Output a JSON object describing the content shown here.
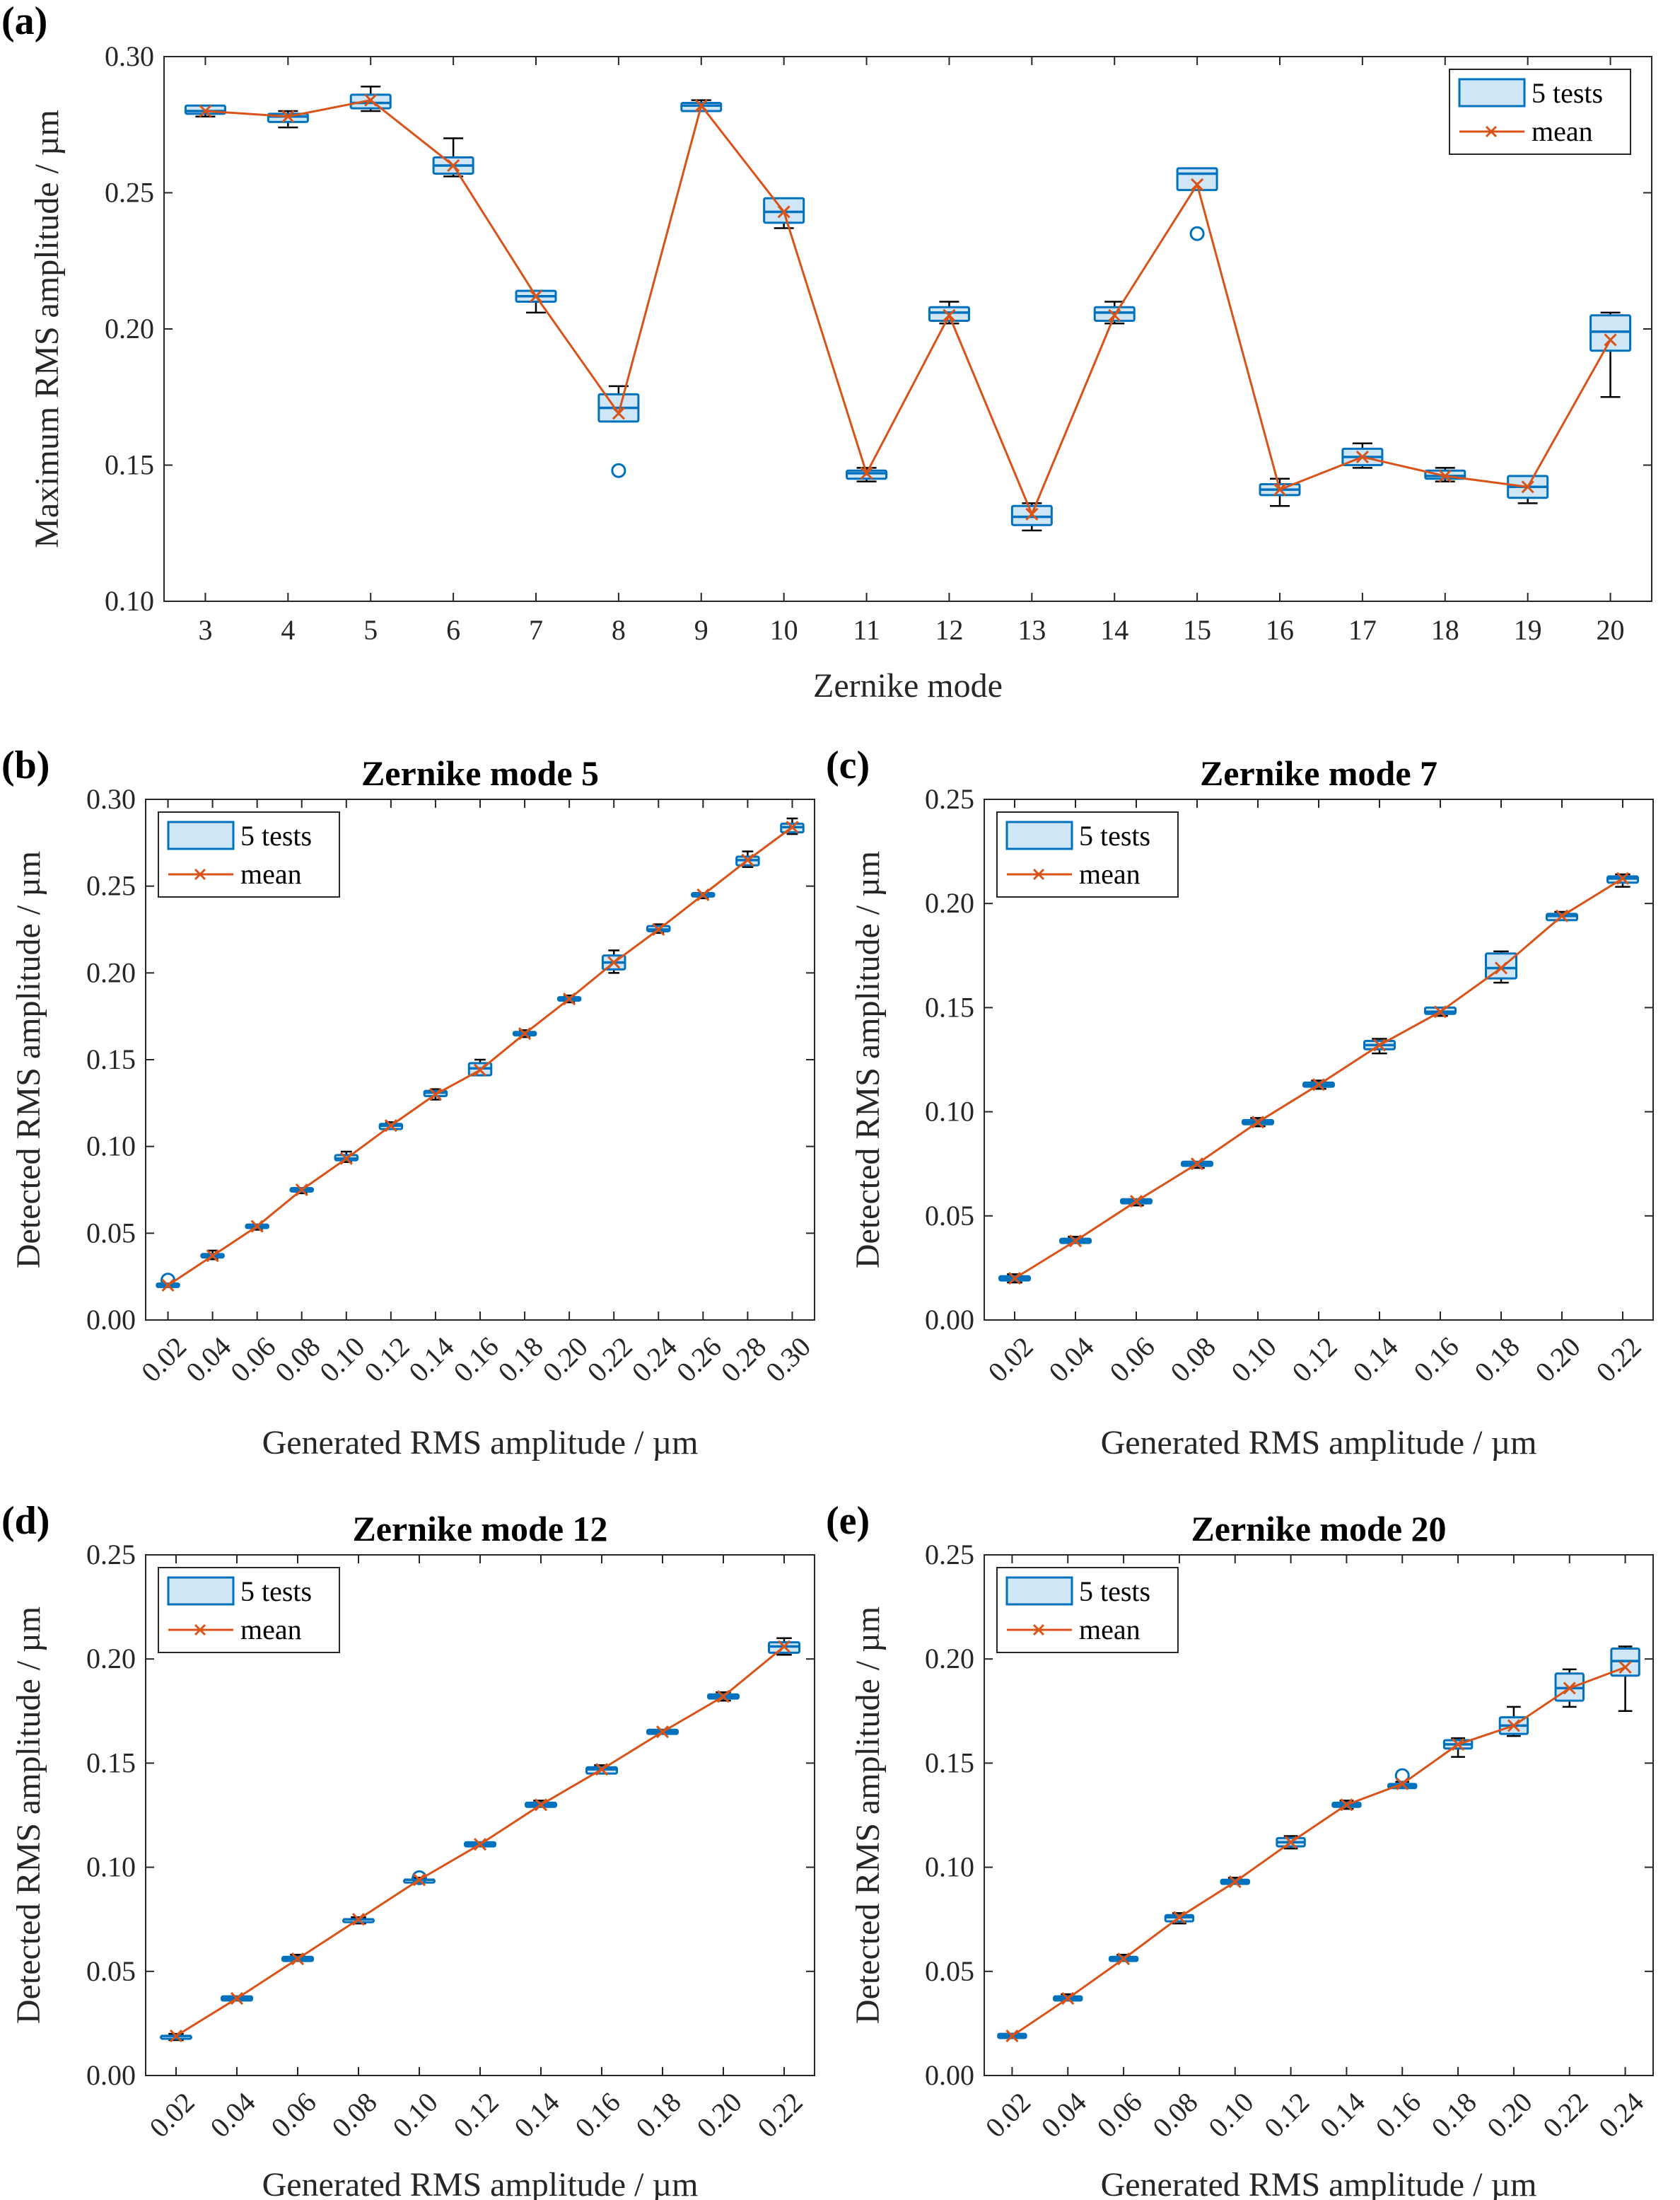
{
  "colors": {
    "box_edge": "#0072BD",
    "box_fill": "#CFE6F6",
    "mean_line": "#D95319",
    "whisker": "#000000",
    "axes": "#262626"
  },
  "chart_data": [
    {
      "panel": "(a)",
      "type": "box",
      "title": "",
      "xlabel": "Zernike mode",
      "ylabel": "Maximum RMS amplitude / µm",
      "ylim": [
        0.1,
        0.3
      ],
      "yticks": [
        "0.10",
        "0.15",
        "0.20",
        "0.25",
        "0.30"
      ],
      "ytick_values": [
        0.1,
        0.15,
        0.2,
        0.25,
        0.3
      ],
      "categories": [
        "3",
        "4",
        "5",
        "6",
        "7",
        "8",
        "9",
        "10",
        "11",
        "12",
        "13",
        "14",
        "15",
        "16",
        "17",
        "18",
        "19",
        "20"
      ],
      "rotate_xticks": false,
      "legend": {
        "box_label": "5 tests",
        "mean_label": "mean",
        "position": "top-right"
      },
      "boxes": [
        {
          "q1": 0.279,
          "median": 0.28,
          "q3": 0.282,
          "wlo": 0.278,
          "whi": 0.282,
          "mean": 0.28,
          "outliers": []
        },
        {
          "q1": 0.276,
          "median": 0.278,
          "q3": 0.279,
          "wlo": 0.274,
          "whi": 0.28,
          "mean": 0.278,
          "outliers": []
        },
        {
          "q1": 0.281,
          "median": 0.283,
          "q3": 0.286,
          "wlo": 0.28,
          "whi": 0.289,
          "mean": 0.284,
          "outliers": []
        },
        {
          "q1": 0.257,
          "median": 0.26,
          "q3": 0.263,
          "wlo": 0.256,
          "whi": 0.27,
          "mean": 0.26,
          "outliers": []
        },
        {
          "q1": 0.21,
          "median": 0.212,
          "q3": 0.214,
          "wlo": 0.206,
          "whi": 0.214,
          "mean": 0.212,
          "outliers": []
        },
        {
          "q1": 0.166,
          "median": 0.171,
          "q3": 0.176,
          "wlo": 0.166,
          "whi": 0.179,
          "mean": 0.169,
          "outliers": [
            0.148
          ]
        },
        {
          "q1": 0.28,
          "median": 0.282,
          "q3": 0.283,
          "wlo": 0.28,
          "whi": 0.284,
          "mean": 0.282,
          "outliers": []
        },
        {
          "q1": 0.239,
          "median": 0.243,
          "q3": 0.248,
          "wlo": 0.237,
          "whi": 0.248,
          "mean": 0.243,
          "outliers": []
        },
        {
          "q1": 0.145,
          "median": 0.147,
          "q3": 0.148,
          "wlo": 0.144,
          "whi": 0.149,
          "mean": 0.147,
          "outliers": []
        },
        {
          "q1": 0.203,
          "median": 0.206,
          "q3": 0.208,
          "wlo": 0.202,
          "whi": 0.21,
          "mean": 0.205,
          "outliers": []
        },
        {
          "q1": 0.128,
          "median": 0.131,
          "q3": 0.135,
          "wlo": 0.126,
          "whi": 0.136,
          "mean": 0.132,
          "outliers": []
        },
        {
          "q1": 0.203,
          "median": 0.206,
          "q3": 0.208,
          "wlo": 0.202,
          "whi": 0.21,
          "mean": 0.205,
          "outliers": []
        },
        {
          "q1": 0.251,
          "median": 0.257,
          "q3": 0.259,
          "wlo": 0.251,
          "whi": 0.259,
          "mean": 0.253,
          "outliers": [
            0.235
          ]
        },
        {
          "q1": 0.139,
          "median": 0.141,
          "q3": 0.143,
          "wlo": 0.135,
          "whi": 0.145,
          "mean": 0.141,
          "outliers": []
        },
        {
          "q1": 0.15,
          "median": 0.153,
          "q3": 0.156,
          "wlo": 0.149,
          "whi": 0.158,
          "mean": 0.153,
          "outliers": []
        },
        {
          "q1": 0.145,
          "median": 0.146,
          "q3": 0.148,
          "wlo": 0.144,
          "whi": 0.149,
          "mean": 0.146,
          "outliers": []
        },
        {
          "q1": 0.138,
          "median": 0.142,
          "q3": 0.146,
          "wlo": 0.136,
          "whi": 0.146,
          "mean": 0.142,
          "outliers": []
        },
        {
          "q1": 0.192,
          "median": 0.199,
          "q3": 0.205,
          "wlo": 0.175,
          "whi": 0.206,
          "mean": 0.196,
          "outliers": []
        }
      ]
    },
    {
      "panel": "(b)",
      "type": "box",
      "title": "Zernike mode 5",
      "xlabel": "Generated RMS amplitude / µm",
      "ylabel": "Detected RMS amplitude / µm",
      "ylim": [
        0.0,
        0.3
      ],
      "yticks": [
        "0.00",
        "0.05",
        "0.10",
        "0.15",
        "0.20",
        "0.25",
        "0.30"
      ],
      "ytick_values": [
        0.0,
        0.05,
        0.1,
        0.15,
        0.2,
        0.25,
        0.3
      ],
      "categories": [
        "0.02",
        "0.04",
        "0.06",
        "0.08",
        "0.10",
        "0.12",
        "0.14",
        "0.16",
        "0.18",
        "0.20",
        "0.22",
        "0.24",
        "0.26",
        "0.28",
        "0.30"
      ],
      "rotate_xticks": true,
      "legend": {
        "box_label": "5 tests",
        "mean_label": "mean",
        "position": "top-left"
      },
      "boxes": [
        {
          "q1": 0.019,
          "median": 0.02,
          "q3": 0.021,
          "wlo": 0.019,
          "whi": 0.021,
          "mean": 0.02,
          "outliers": [
            0.023
          ]
        },
        {
          "q1": 0.036,
          "median": 0.037,
          "q3": 0.038,
          "wlo": 0.035,
          "whi": 0.04,
          "mean": 0.037,
          "outliers": []
        },
        {
          "q1": 0.053,
          "median": 0.054,
          "q3": 0.055,
          "wlo": 0.052,
          "whi": 0.055,
          "mean": 0.054,
          "outliers": []
        },
        {
          "q1": 0.074,
          "median": 0.075,
          "q3": 0.076,
          "wlo": 0.073,
          "whi": 0.076,
          "mean": 0.075,
          "outliers": []
        },
        {
          "q1": 0.092,
          "median": 0.093,
          "q3": 0.095,
          "wlo": 0.091,
          "whi": 0.097,
          "mean": 0.093,
          "outliers": []
        },
        {
          "q1": 0.11,
          "median": 0.112,
          "q3": 0.113,
          "wlo": 0.11,
          "whi": 0.114,
          "mean": 0.112,
          "outliers": []
        },
        {
          "q1": 0.129,
          "median": 0.131,
          "q3": 0.132,
          "wlo": 0.127,
          "whi": 0.133,
          "mean": 0.13,
          "outliers": []
        },
        {
          "q1": 0.141,
          "median": 0.145,
          "q3": 0.148,
          "wlo": 0.141,
          "whi": 0.15,
          "mean": 0.144,
          "outliers": []
        },
        {
          "q1": 0.164,
          "median": 0.165,
          "q3": 0.166,
          "wlo": 0.163,
          "whi": 0.167,
          "mean": 0.165,
          "outliers": []
        },
        {
          "q1": 0.184,
          "median": 0.185,
          "q3": 0.186,
          "wlo": 0.183,
          "whi": 0.187,
          "mean": 0.185,
          "outliers": []
        },
        {
          "q1": 0.202,
          "median": 0.206,
          "q3": 0.21,
          "wlo": 0.2,
          "whi": 0.213,
          "mean": 0.206,
          "outliers": []
        },
        {
          "q1": 0.224,
          "median": 0.225,
          "q3": 0.227,
          "wlo": 0.223,
          "whi": 0.228,
          "mean": 0.225,
          "outliers": []
        },
        {
          "q1": 0.244,
          "median": 0.245,
          "q3": 0.246,
          "wlo": 0.243,
          "whi": 0.246,
          "mean": 0.245,
          "outliers": []
        },
        {
          "q1": 0.262,
          "median": 0.265,
          "q3": 0.267,
          "wlo": 0.261,
          "whi": 0.27,
          "mean": 0.265,
          "outliers": []
        },
        {
          "q1": 0.281,
          "median": 0.284,
          "q3": 0.286,
          "wlo": 0.28,
          "whi": 0.289,
          "mean": 0.284,
          "outliers": []
        }
      ]
    },
    {
      "panel": "(c)",
      "type": "box",
      "title": "Zernike mode 7",
      "xlabel": "Generated RMS amplitude / µm",
      "ylabel": "Detected RMS amplitude / µm",
      "ylim": [
        0.0,
        0.25
      ],
      "yticks": [
        "0.00",
        "0.05",
        "0.10",
        "0.15",
        "0.20",
        "0.25"
      ],
      "ytick_values": [
        0.0,
        0.05,
        0.1,
        0.15,
        0.2,
        0.25
      ],
      "categories": [
        "0.02",
        "0.04",
        "0.06",
        "0.08",
        "0.10",
        "0.12",
        "0.14",
        "0.16",
        "0.18",
        "0.20",
        "0.22"
      ],
      "rotate_xticks": true,
      "legend": {
        "box_label": "5 tests",
        "mean_label": "mean",
        "position": "top-left"
      },
      "boxes": [
        {
          "q1": 0.019,
          "median": 0.02,
          "q3": 0.021,
          "wlo": 0.018,
          "whi": 0.022,
          "mean": 0.02,
          "outliers": []
        },
        {
          "q1": 0.037,
          "median": 0.038,
          "q3": 0.039,
          "wlo": 0.037,
          "whi": 0.04,
          "mean": 0.038,
          "outliers": []
        },
        {
          "q1": 0.056,
          "median": 0.057,
          "q3": 0.058,
          "wlo": 0.055,
          "whi": 0.058,
          "mean": 0.057,
          "outliers": []
        },
        {
          "q1": 0.074,
          "median": 0.075,
          "q3": 0.076,
          "wlo": 0.073,
          "whi": 0.076,
          "mean": 0.075,
          "outliers": []
        },
        {
          "q1": 0.094,
          "median": 0.095,
          "q3": 0.096,
          "wlo": 0.093,
          "whi": 0.097,
          "mean": 0.095,
          "outliers": []
        },
        {
          "q1": 0.112,
          "median": 0.113,
          "q3": 0.114,
          "wlo": 0.111,
          "whi": 0.115,
          "mean": 0.113,
          "outliers": []
        },
        {
          "q1": 0.13,
          "median": 0.132,
          "q3": 0.134,
          "wlo": 0.128,
          "whi": 0.135,
          "mean": 0.132,
          "outliers": []
        },
        {
          "q1": 0.147,
          "median": 0.148,
          "q3": 0.15,
          "wlo": 0.146,
          "whi": 0.15,
          "mean": 0.148,
          "outliers": []
        },
        {
          "q1": 0.164,
          "median": 0.169,
          "q3": 0.176,
          "wlo": 0.162,
          "whi": 0.177,
          "mean": 0.169,
          "outliers": []
        },
        {
          "q1": 0.192,
          "median": 0.194,
          "q3": 0.195,
          "wlo": 0.192,
          "whi": 0.196,
          "mean": 0.194,
          "outliers": []
        },
        {
          "q1": 0.21,
          "median": 0.212,
          "q3": 0.213,
          "wlo": 0.208,
          "whi": 0.214,
          "mean": 0.212,
          "outliers": []
        }
      ]
    },
    {
      "panel": "(d)",
      "type": "box",
      "title": "Zernike mode 12",
      "xlabel": "Generated RMS amplitude / µm",
      "ylabel": "Detected RMS amplitude / µm",
      "ylim": [
        0.0,
        0.25
      ],
      "yticks": [
        "0.00",
        "0.05",
        "0.10",
        "0.15",
        "0.20",
        "0.25"
      ],
      "ytick_values": [
        0.0,
        0.05,
        0.1,
        0.15,
        0.2,
        0.25
      ],
      "categories": [
        "0.02",
        "0.04",
        "0.06",
        "0.08",
        "0.10",
        "0.12",
        "0.14",
        "0.16",
        "0.18",
        "0.20",
        "0.22"
      ],
      "rotate_xticks": true,
      "legend": {
        "box_label": "5 tests",
        "mean_label": "mean",
        "position": "top-left"
      },
      "boxes": [
        {
          "q1": 0.018,
          "median": 0.019,
          "q3": 0.019,
          "wlo": 0.017,
          "whi": 0.02,
          "mean": 0.019,
          "outliers": []
        },
        {
          "q1": 0.036,
          "median": 0.037,
          "q3": 0.038,
          "wlo": 0.036,
          "whi": 0.038,
          "mean": 0.037,
          "outliers": []
        },
        {
          "q1": 0.055,
          "median": 0.056,
          "q3": 0.057,
          "wlo": 0.055,
          "whi": 0.058,
          "mean": 0.056,
          "outliers": []
        },
        {
          "q1": 0.074,
          "median": 0.075,
          "q3": 0.075,
          "wlo": 0.073,
          "whi": 0.076,
          "mean": 0.075,
          "outliers": []
        },
        {
          "q1": 0.093,
          "median": 0.094,
          "q3": 0.094,
          "wlo": 0.093,
          "whi": 0.095,
          "mean": 0.094,
          "outliers": [
            0.095
          ]
        },
        {
          "q1": 0.11,
          "median": 0.111,
          "q3": 0.112,
          "wlo": 0.11,
          "whi": 0.112,
          "mean": 0.111,
          "outliers": []
        },
        {
          "q1": 0.129,
          "median": 0.13,
          "q3": 0.131,
          "wlo": 0.129,
          "whi": 0.132,
          "mean": 0.13,
          "outliers": []
        },
        {
          "q1": 0.145,
          "median": 0.147,
          "q3": 0.148,
          "wlo": 0.145,
          "whi": 0.149,
          "mean": 0.147,
          "outliers": []
        },
        {
          "q1": 0.164,
          "median": 0.165,
          "q3": 0.166,
          "wlo": 0.164,
          "whi": 0.166,
          "mean": 0.165,
          "outliers": []
        },
        {
          "q1": 0.181,
          "median": 0.182,
          "q3": 0.183,
          "wlo": 0.18,
          "whi": 0.184,
          "mean": 0.182,
          "outliers": []
        },
        {
          "q1": 0.203,
          "median": 0.206,
          "q3": 0.208,
          "wlo": 0.202,
          "whi": 0.21,
          "mean": 0.206,
          "outliers": []
        }
      ]
    },
    {
      "panel": "(e)",
      "type": "box",
      "title": "Zernike mode 20",
      "xlabel": "Generated RMS amplitude / µm",
      "ylabel": "Detected RMS amplitude / µm",
      "ylim": [
        0.0,
        0.25
      ],
      "yticks": [
        "0.00",
        "0.05",
        "0.10",
        "0.15",
        "0.20",
        "0.25"
      ],
      "ytick_values": [
        0.0,
        0.05,
        0.1,
        0.15,
        0.2,
        0.25
      ],
      "categories": [
        "0.02",
        "0.04",
        "0.06",
        "0.08",
        "0.10",
        "0.12",
        "0.14",
        "0.16",
        "0.18",
        "0.20",
        "0.22",
        "0.24"
      ],
      "rotate_xticks": true,
      "legend": {
        "box_label": "5 tests",
        "mean_label": "mean",
        "position": "top-left"
      },
      "boxes": [
        {
          "q1": 0.018,
          "median": 0.019,
          "q3": 0.02,
          "wlo": 0.018,
          "whi": 0.02,
          "mean": 0.019,
          "outliers": []
        },
        {
          "q1": 0.036,
          "median": 0.037,
          "q3": 0.038,
          "wlo": 0.036,
          "whi": 0.039,
          "mean": 0.037,
          "outliers": []
        },
        {
          "q1": 0.055,
          "median": 0.056,
          "q3": 0.057,
          "wlo": 0.055,
          "whi": 0.058,
          "mean": 0.056,
          "outliers": []
        },
        {
          "q1": 0.074,
          "median": 0.076,
          "q3": 0.077,
          "wlo": 0.073,
          "whi": 0.078,
          "mean": 0.076,
          "outliers": []
        },
        {
          "q1": 0.092,
          "median": 0.093,
          "q3": 0.094,
          "wlo": 0.092,
          "whi": 0.095,
          "mean": 0.093,
          "outliers": []
        },
        {
          "q1": 0.11,
          "median": 0.112,
          "q3": 0.114,
          "wlo": 0.109,
          "whi": 0.115,
          "mean": 0.112,
          "outliers": []
        },
        {
          "q1": 0.129,
          "median": 0.13,
          "q3": 0.131,
          "wlo": 0.128,
          "whi": 0.132,
          "mean": 0.13,
          "outliers": []
        },
        {
          "q1": 0.138,
          "median": 0.139,
          "q3": 0.14,
          "wlo": 0.138,
          "whi": 0.141,
          "mean": 0.14,
          "outliers": [
            0.144
          ]
        },
        {
          "q1": 0.157,
          "median": 0.159,
          "q3": 0.161,
          "wlo": 0.153,
          "whi": 0.162,
          "mean": 0.159,
          "outliers": []
        },
        {
          "q1": 0.164,
          "median": 0.168,
          "q3": 0.172,
          "wlo": 0.163,
          "whi": 0.177,
          "mean": 0.168,
          "outliers": []
        },
        {
          "q1": 0.18,
          "median": 0.186,
          "q3": 0.193,
          "wlo": 0.177,
          "whi": 0.195,
          "mean": 0.186,
          "outliers": []
        },
        {
          "q1": 0.192,
          "median": 0.199,
          "q3": 0.205,
          "wlo": 0.175,
          "whi": 0.206,
          "mean": 0.196,
          "outliers": []
        }
      ]
    }
  ]
}
